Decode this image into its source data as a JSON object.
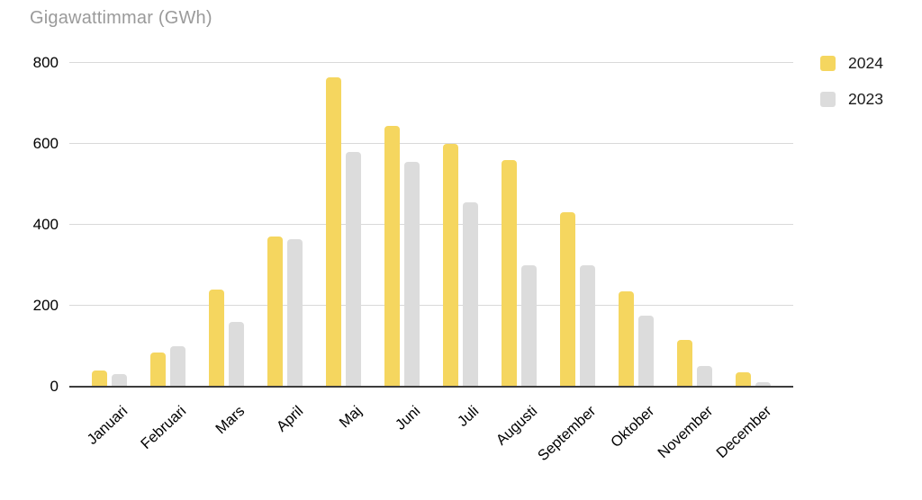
{
  "chart_data": {
    "type": "bar",
    "title": "Gigawattimmar (GWh)",
    "xlabel": "",
    "ylabel": "Gigawattimmar (GWh)",
    "categories": [
      "Januari",
      "Februari",
      "Mars",
      "April",
      "Maj",
      "Juni",
      "Juli",
      "Augusti",
      "September",
      "Oktober",
      "November",
      "December"
    ],
    "series": [
      {
        "name": "2024",
        "color": "#F5D65F",
        "values": [
          40,
          85,
          240,
          370,
          765,
          645,
          600,
          560,
          430,
          235,
          115,
          35
        ]
      },
      {
        "name": "2023",
        "color": "#DCDCDC",
        "values": [
          30,
          100,
          160,
          365,
          580,
          555,
          455,
          300,
          300,
          175,
          50,
          10
        ]
      }
    ],
    "ylim": [
      0,
      800
    ],
    "y_ticks": [
      0,
      200,
      400,
      600,
      800
    ],
    "grid": true,
    "legend_position": "top-right",
    "colors": {
      "title_text": "#9A9A9A",
      "gridline": "#D9D9D9",
      "axis_line": "#3D3D3D",
      "tick_label": "#000000",
      "series_2024": "#F5D65F",
      "series_2023": "#DCDCDC"
    }
  }
}
